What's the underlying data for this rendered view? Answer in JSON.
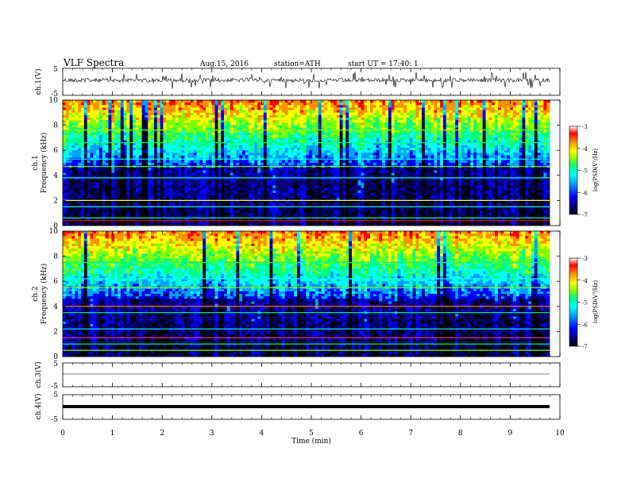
{
  "header": {
    "title": "VLF Spectra",
    "date": "Aug.15, 2016",
    "station": "station=ATH",
    "start": "start UT =   17:40: 1"
  },
  "colors": {
    "colormap": [
      "#000000",
      "#000070",
      "#0000ff",
      "#00a0ff",
      "#00ffff",
      "#00ff80",
      "#80ff00",
      "#ffff00",
      "#ff9000",
      "#ff0000",
      "#ffffff"
    ],
    "trace": "#000000"
  },
  "chart_data": [
    {
      "type": "line",
      "ylabel": "ch.1(V)",
      "ylim": [
        -5,
        5
      ],
      "y_ticks": [
        "5",
        "-5"
      ],
      "description_values": "noisy waveform around 0 V"
    },
    {
      "type": "heatmap",
      "ylabel_top": "ch.1",
      "ylabel": "Frequency (kHz)",
      "ylim": [
        0,
        10
      ],
      "y_ticks": [
        "10",
        "8",
        "6",
        "4",
        "2",
        "0"
      ],
      "colorbar_label": "log(PSD(V²/Hz)",
      "colorbar_range": [
        -7,
        -3
      ],
      "colorbar_ticks": [
        "-3",
        "-4",
        "-5",
        "-6",
        "-7"
      ]
    },
    {
      "type": "heatmap",
      "ylabel_top": "ch.2",
      "ylabel": "Frequency (kHz)",
      "ylim": [
        0,
        10
      ],
      "y_ticks": [
        "10",
        "8",
        "6",
        "4",
        "2",
        "0"
      ],
      "colorbar_label": "log(PSD(V²/Hz)",
      "colorbar_range": [
        -7,
        -3
      ],
      "colorbar_ticks": [
        "-3",
        "-4",
        "-5",
        "-6",
        "-7"
      ]
    },
    {
      "type": "line",
      "ylabel": "ch.3(V)",
      "ylim": [
        -5,
        5
      ],
      "y_ticks": [
        "5",
        "-5"
      ]
    },
    {
      "type": "line",
      "ylabel": "ch.4(V)",
      "ylim": [
        -5,
        5
      ],
      "y_ticks": [
        "5",
        "-5"
      ]
    }
  ],
  "x_axis": {
    "label": "Time (min)",
    "xlim": [
      0,
      10
    ],
    "ticks": [
      "0",
      "1",
      "2",
      "3",
      "4",
      "5",
      "6",
      "7",
      "8",
      "9",
      "10"
    ]
  }
}
